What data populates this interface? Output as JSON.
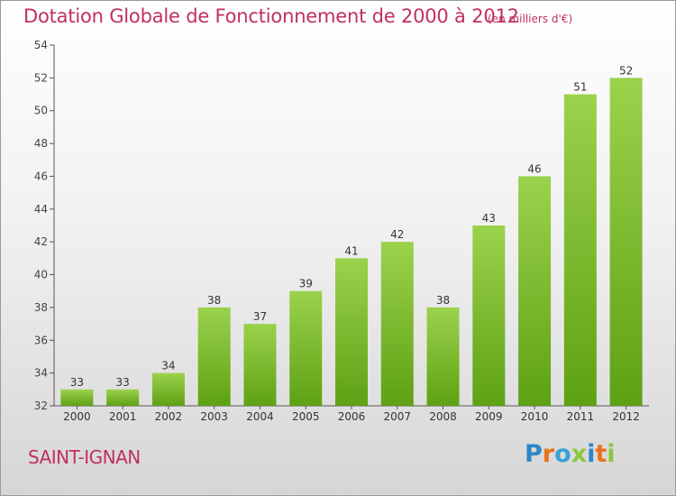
{
  "title": "Dotation Globale de Fonctionnement de 2000 à 2012",
  "unit": "(en milliers d'€)",
  "commune": "SAINT-IGNAN",
  "logo": {
    "text": "Proxiti",
    "colors": [
      "#2f86c8",
      "#e9731c",
      "#3aa0d8",
      "#8cc63f",
      "#2f86c8",
      "#e9731c",
      "#8cc63f"
    ]
  },
  "colors": {
    "accent": "#c0315c",
    "bar_top": "#9bd24c",
    "bar_bottom": "#5ea114"
  },
  "chart_data": {
    "type": "bar",
    "categories": [
      "2000",
      "2001",
      "2002",
      "2003",
      "2004",
      "2005",
      "2006",
      "2007",
      "2008",
      "2009",
      "2010",
      "2011",
      "2012"
    ],
    "values": [
      33,
      33,
      34,
      38,
      37,
      39,
      41,
      42,
      38,
      43,
      46,
      51,
      52
    ],
    "ylim": [
      32,
      54
    ],
    "yticks": [
      32,
      34,
      36,
      38,
      40,
      42,
      44,
      46,
      48,
      50,
      52,
      54
    ],
    "grid": false,
    "data_labels": true
  }
}
